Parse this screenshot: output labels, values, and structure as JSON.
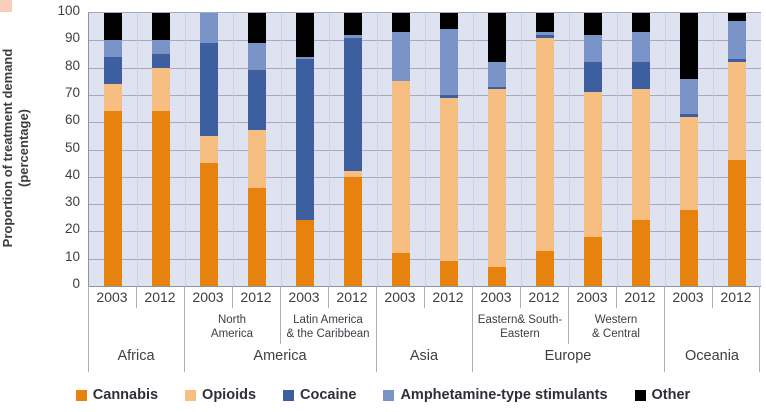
{
  "style_colors": {
    "plot_bg": "#DFE2F0",
    "h_gridline": "#A5ABBF",
    "v_slotline": "#CBD1E4",
    "axis_line": "#8E94A8",
    "separator": "#A8AEC0",
    "text": "#3E3E46",
    "corner_mark": "#F6CEBB"
  },
  "y_axis": {
    "title_lines": [
      "Proportion of treatment demand",
      "(percentage)"
    ],
    "ticks": [
      0,
      10,
      20,
      30,
      40,
      50,
      60,
      70,
      80,
      90,
      100
    ]
  },
  "legend": {
    "items": [
      {
        "label": "Cannabis",
        "color": "#E8820E"
      },
      {
        "label": "Opioids",
        "color": "#F7BE82"
      },
      {
        "label": "Cocaine",
        "color": "#3D5F9F"
      },
      {
        "label": "Amphetamine-type stimulants",
        "color": "#7A94C8"
      },
      {
        "label": "Other",
        "color": "#000000"
      }
    ]
  },
  "chart_data": {
    "type": "bar",
    "stacked": true,
    "orientation": "vertical",
    "title": "",
    "xlabel": "",
    "ylabel": "Proportion of treatment demand (percentage)",
    "ylim": [
      0,
      100
    ],
    "ytick_step": 10,
    "grid": true,
    "legend_position": "bottom",
    "series": [
      "Cannabis",
      "Opioids",
      "Cocaine",
      "Amphetamine-type stimulants",
      "Other"
    ],
    "colors": {
      "Cannabis": "#E8820E",
      "Opioids": "#F7BE82",
      "Cocaine": "#3D5F9F",
      "Amphetamine-type stimulants": "#7A94C8",
      "Other": "#000000"
    },
    "continents": [
      {
        "label": "Africa",
        "subregions": [
          {
            "label": "",
            "label_lines": [],
            "bars": [
              {
                "year": "2003",
                "values": {
                  "Cannabis": 64,
                  "Opioids": 10,
                  "Cocaine": 10,
                  "Amphetamine-type stimulants": 6,
                  "Other": 10
                }
              },
              {
                "year": "2012",
                "values": {
                  "Cannabis": 64,
                  "Opioids": 16,
                  "Cocaine": 5,
                  "Amphetamine-type stimulants": 5,
                  "Other": 10
                }
              }
            ]
          }
        ]
      },
      {
        "label": "America",
        "subregions": [
          {
            "label": "North America",
            "label_lines": [
              "North",
              "America"
            ],
            "bars": [
              {
                "year": "2003",
                "values": {
                  "Cannabis": 45,
                  "Opioids": 10,
                  "Cocaine": 34,
                  "Amphetamine-type stimulants": 11,
                  "Other": 0
                }
              },
              {
                "year": "2012",
                "values": {
                  "Cannabis": 36,
                  "Opioids": 21,
                  "Cocaine": 22,
                  "Amphetamine-type stimulants": 10,
                  "Other": 11
                }
              }
            ]
          },
          {
            "label": "Latin America & the Caribbean",
            "label_lines": [
              "Latin America",
              "& the Caribbean"
            ],
            "bars": [
              {
                "year": "2003",
                "values": {
                  "Cannabis": 24,
                  "Opioids": 0,
                  "Cocaine": 59,
                  "Amphetamine-type stimulants": 1,
                  "Other": 16
                }
              },
              {
                "year": "2012",
                "values": {
                  "Cannabis": 40,
                  "Opioids": 2,
                  "Cocaine": 49,
                  "Amphetamine-type stimulants": 1,
                  "Other": 8
                }
              }
            ]
          }
        ]
      },
      {
        "label": "Asia",
        "subregions": [
          {
            "label": "",
            "label_lines": [],
            "bars": [
              {
                "year": "2003",
                "values": {
                  "Cannabis": 12,
                  "Opioids": 63,
                  "Cocaine": 0,
                  "Amphetamine-type stimulants": 18,
                  "Other": 7
                }
              },
              {
                "year": "2012",
                "values": {
                  "Cannabis": 9,
                  "Opioids": 60,
                  "Cocaine": 1,
                  "Amphetamine-type stimulants": 24,
                  "Other": 6
                }
              }
            ]
          }
        ]
      },
      {
        "label": "Europe",
        "subregions": [
          {
            "label": "Eastern& South-Eastern",
            "label_lines": [
              "Eastern& South-",
              "Eastern"
            ],
            "bars": [
              {
                "year": "2003",
                "values": {
                  "Cannabis": 7,
                  "Opioids": 65,
                  "Cocaine": 1,
                  "Amphetamine-type stimulants": 9,
                  "Other": 18
                }
              },
              {
                "year": "2012",
                "values": {
                  "Cannabis": 13,
                  "Opioids": 78,
                  "Cocaine": 1,
                  "Amphetamine-type stimulants": 1,
                  "Other": 7
                }
              }
            ]
          },
          {
            "label": "Western & Central",
            "label_lines": [
              "Western",
              "& Central"
            ],
            "bars": [
              {
                "year": "2003",
                "values": {
                  "Cannabis": 18,
                  "Opioids": 53,
                  "Cocaine": 11,
                  "Amphetamine-type stimulants": 10,
                  "Other": 8
                }
              },
              {
                "year": "2012",
                "values": {
                  "Cannabis": 24,
                  "Opioids": 48,
                  "Cocaine": 10,
                  "Amphetamine-type stimulants": 11,
                  "Other": 7
                }
              }
            ]
          }
        ]
      },
      {
        "label": "Oceania",
        "subregions": [
          {
            "label": "",
            "label_lines": [],
            "bars": [
              {
                "year": "2003",
                "values": {
                  "Cannabis": 28,
                  "Opioids": 34,
                  "Cocaine": 1,
                  "Amphetamine-type stimulants": 13,
                  "Other": 24
                }
              },
              {
                "year": "2012",
                "values": {
                  "Cannabis": 46,
                  "Opioids": 36,
                  "Cocaine": 1,
                  "Amphetamine-type stimulants": 14,
                  "Other": 3
                }
              }
            ]
          }
        ]
      }
    ]
  }
}
